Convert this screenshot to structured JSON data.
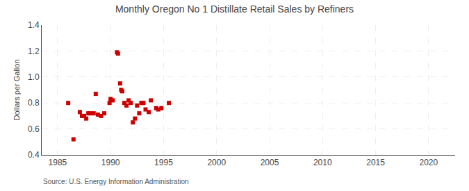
{
  "chart_data": {
    "type": "scatter",
    "title": "Monthly Oregon No 1 Distillate Retail Sales by Refiners",
    "ylabel": "Dollars per Gallon",
    "annotations": [
      "Source: U.S. Energy Information Administration"
    ],
    "x": [
      1986.0,
      1986.5,
      1987.1,
      1987.3,
      1987.5,
      1987.7,
      1987.9,
      1988.1,
      1988.4,
      1988.6,
      1988.8,
      1989.1,
      1989.4,
      1989.9,
      1990.0,
      1990.2,
      1990.6,
      1990.7,
      1990.9,
      1991.0,
      1991.1,
      1991.3,
      1991.5,
      1991.7,
      1991.9,
      1992.1,
      1992.3,
      1992.5,
      1992.7,
      1992.9,
      1993.1,
      1993.3,
      1993.6,
      1993.8,
      1994.3,
      1994.5,
      1994.8,
      1995.5
    ],
    "values": [
      0.8,
      0.52,
      0.73,
      0.7,
      0.7,
      0.68,
      0.72,
      0.72,
      0.72,
      0.87,
      0.71,
      0.7,
      0.72,
      0.8,
      0.83,
      0.82,
      1.19,
      1.18,
      0.95,
      0.9,
      0.89,
      0.8,
      0.78,
      0.82,
      0.8,
      0.65,
      0.68,
      0.78,
      0.72,
      0.8,
      0.8,
      0.75,
      0.73,
      0.82,
      0.76,
      0.75,
      0.76,
      0.8
    ],
    "color": "#cc0000",
    "marker": "square",
    "xlim": [
      1983.5,
      2022.5
    ],
    "ylim": [
      0.4,
      1.4
    ],
    "xticks": [
      1985,
      1990,
      1995,
      2000,
      2005,
      2010,
      2015,
      2020
    ],
    "yticks": [
      0.4,
      0.6,
      0.8,
      {
        "value": 1,
        "label": "1.0"
      },
      1.2,
      1.4
    ],
    "grid": true
  }
}
